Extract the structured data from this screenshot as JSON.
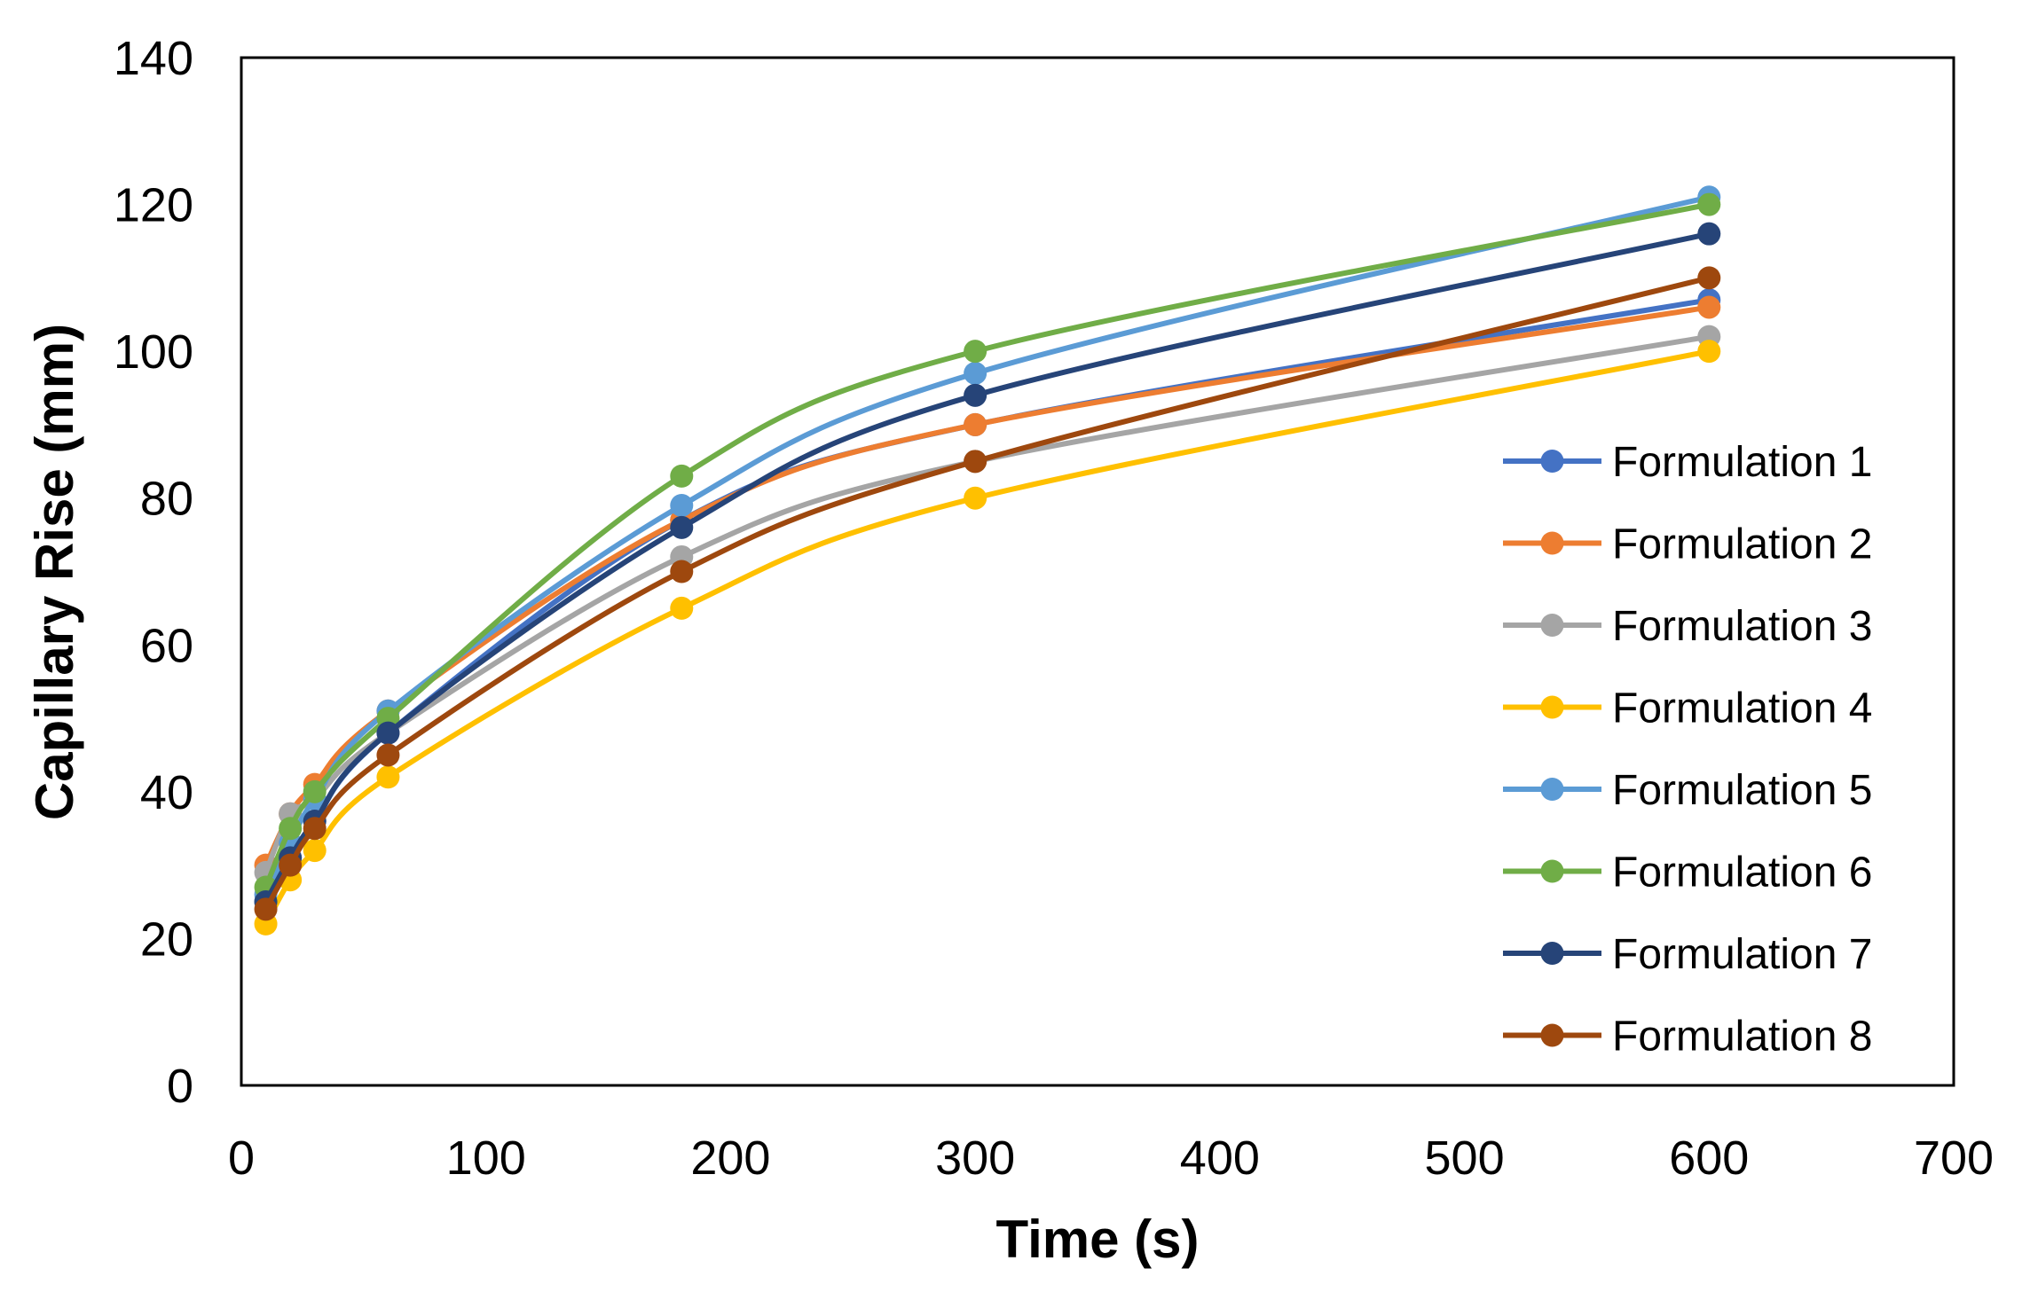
{
  "chart_data": {
    "type": "line",
    "title": "",
    "xlabel": "Time (s)",
    "ylabel": "Capillary Rise (mm)",
    "xlim": [
      0,
      700
    ],
    "ylim": [
      0,
      140
    ],
    "xticks": [
      0,
      100,
      200,
      300,
      400,
      500,
      600,
      700
    ],
    "yticks": [
      0,
      20,
      40,
      60,
      80,
      100,
      120,
      140
    ],
    "grid": false,
    "smooth": true,
    "legend_position": "right",
    "x": [
      10,
      20,
      30,
      60,
      180,
      300,
      600
    ],
    "series": [
      {
        "name": "Formulation 1",
        "color": "#4472C4",
        "values": [
          25,
          31,
          36,
          48,
          77,
          90,
          107
        ]
      },
      {
        "name": "Formulation 2",
        "color": "#ED7D31",
        "values": [
          30,
          37,
          41,
          51,
          77,
          90,
          106
        ]
      },
      {
        "name": "Formulation 3",
        "color": "#A5A5A5",
        "values": [
          29,
          37,
          39,
          48,
          72,
          85,
          102
        ]
      },
      {
        "name": "Formulation 4",
        "color": "#FFC000",
        "values": [
          22,
          28,
          32,
          42,
          65,
          80,
          100
        ]
      },
      {
        "name": "Formulation 5",
        "color": "#5B9BD5",
        "values": [
          26,
          33,
          39,
          51,
          79,
          97,
          121
        ]
      },
      {
        "name": "Formulation 6",
        "color": "#70AD47",
        "values": [
          27,
          35,
          40,
          50,
          83,
          100,
          120
        ]
      },
      {
        "name": "Formulation 7",
        "color": "#264478",
        "values": [
          25,
          31,
          36,
          48,
          76,
          94,
          116
        ]
      },
      {
        "name": "Formulation 8",
        "color": "#9E480E",
        "values": [
          24,
          30,
          35,
          45,
          70,
          85,
          110
        ]
      }
    ]
  }
}
